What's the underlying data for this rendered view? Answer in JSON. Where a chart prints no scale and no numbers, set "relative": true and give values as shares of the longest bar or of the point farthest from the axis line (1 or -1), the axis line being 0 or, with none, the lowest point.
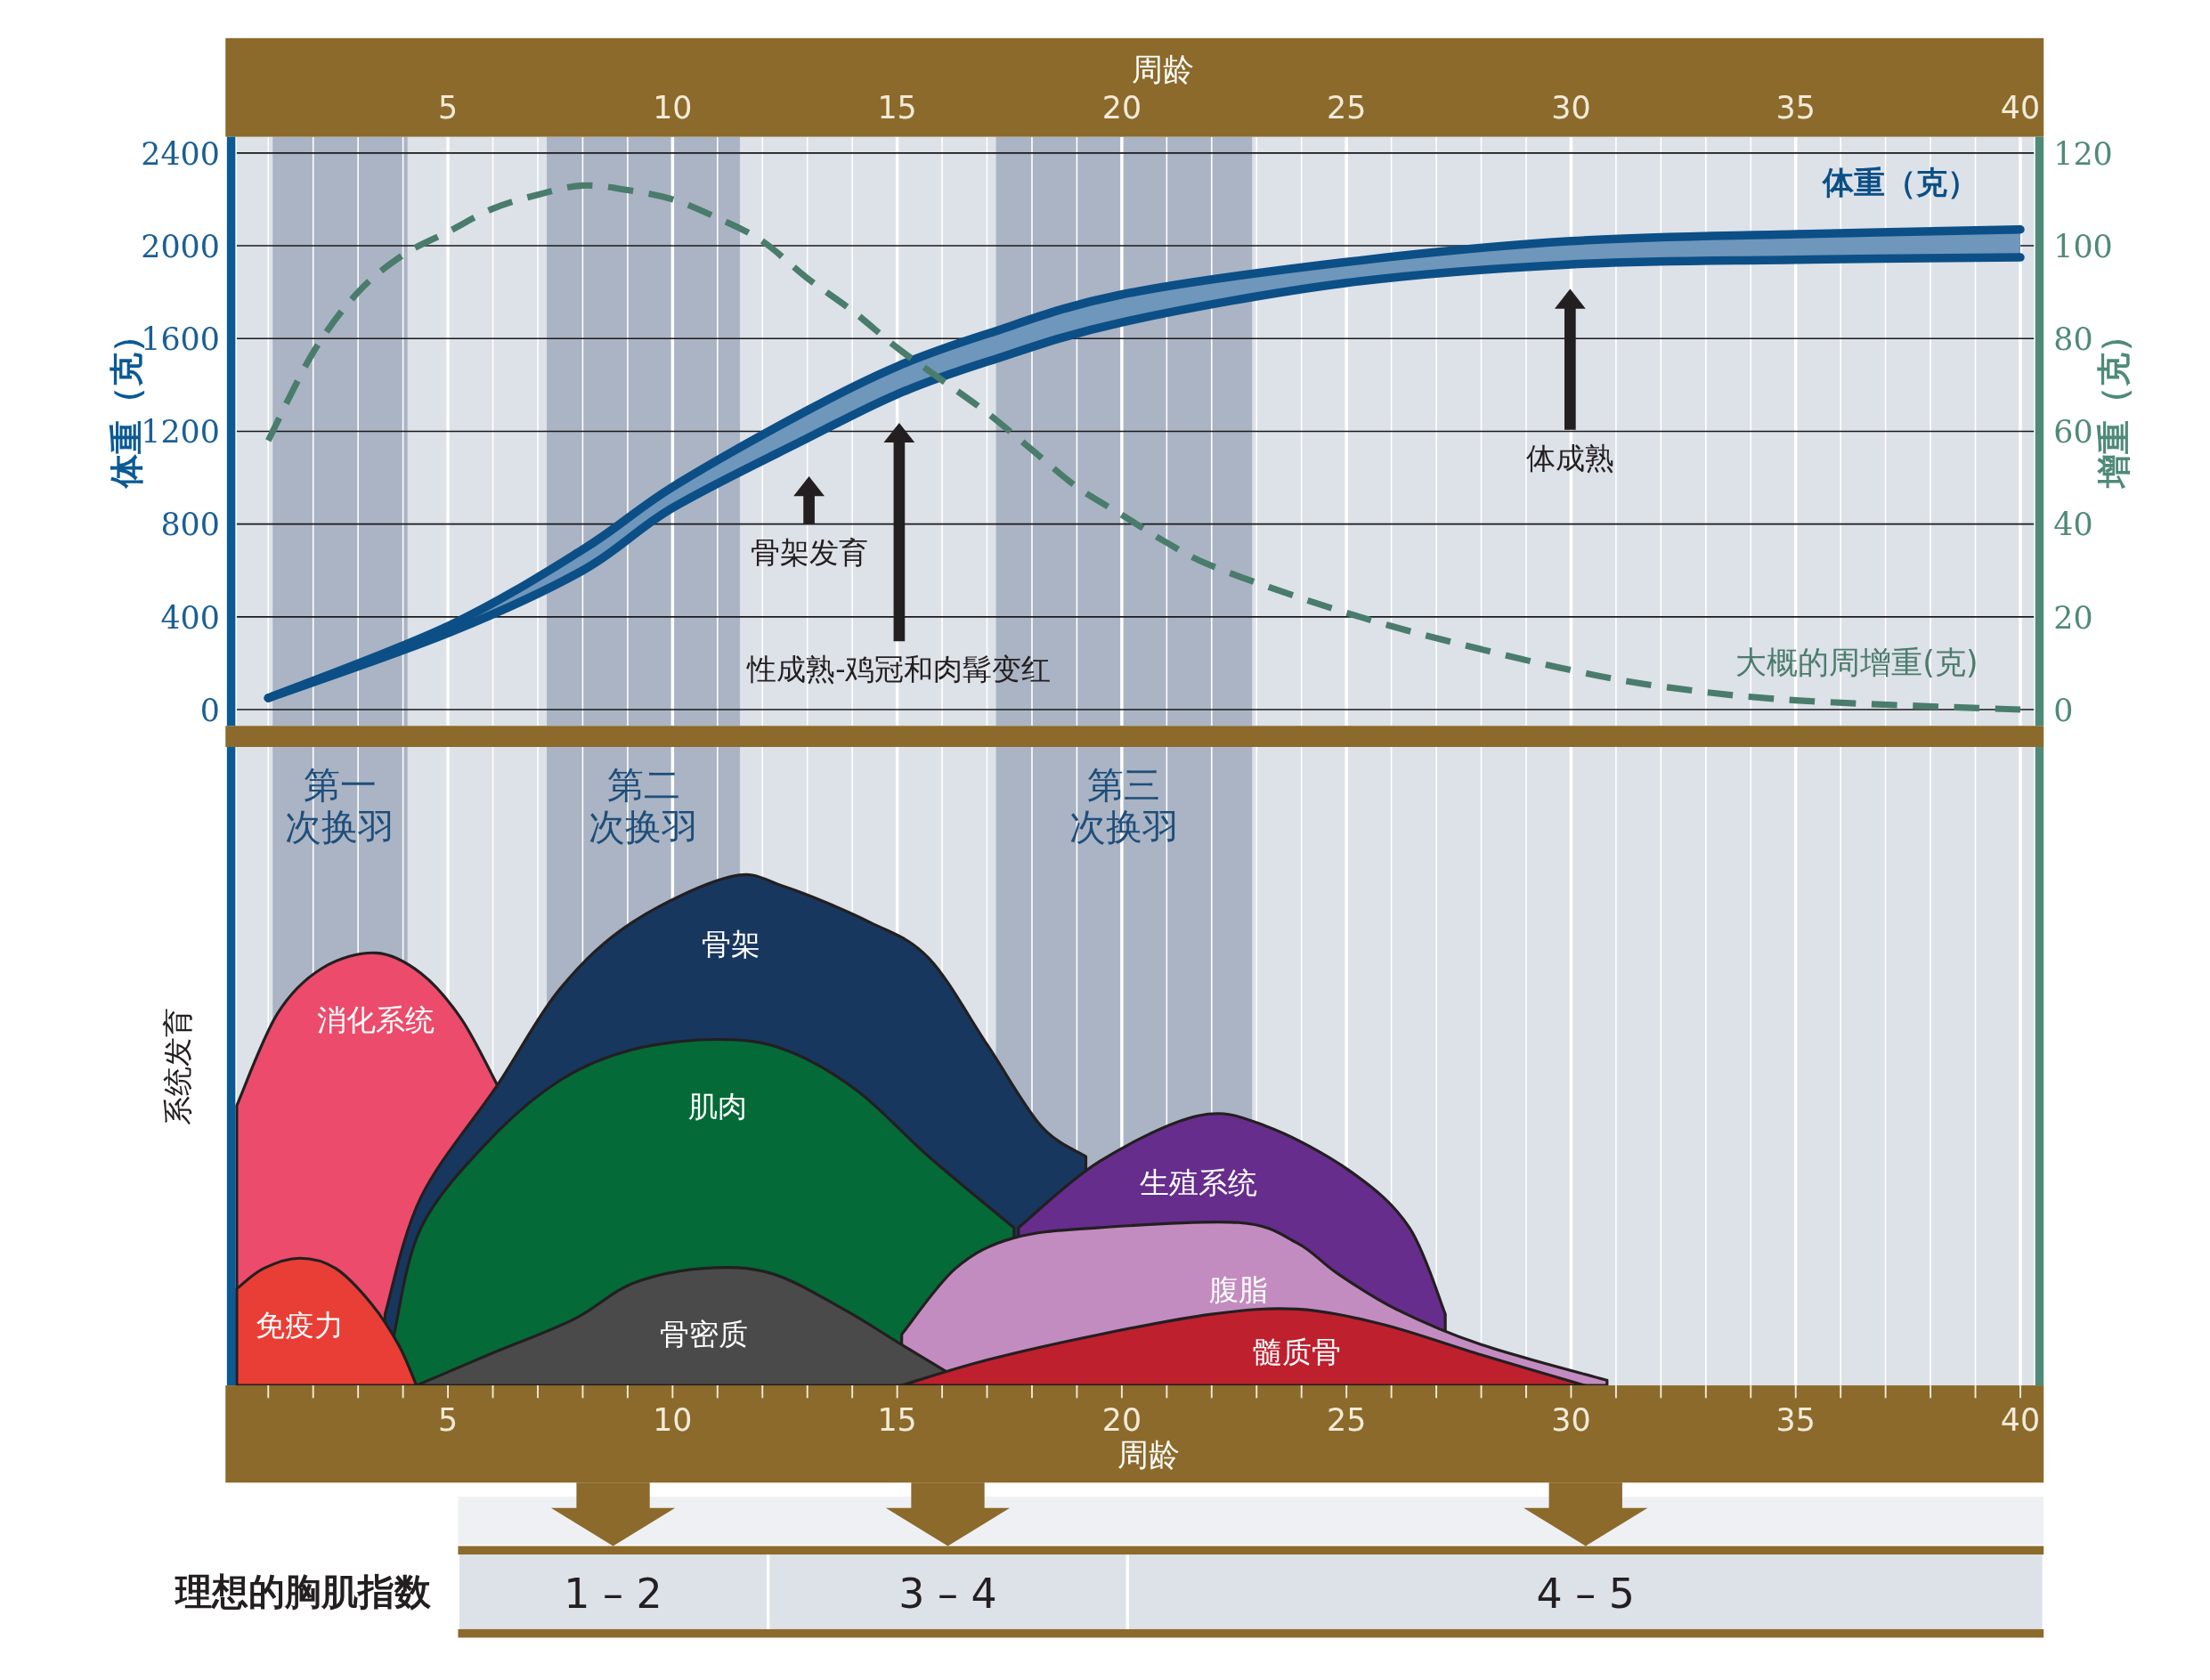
{
  "chart_data": [
    {
      "type": "line",
      "xlabel": "周龄",
      "ylabel": "体重（克）",
      "y2label": "增重（克）",
      "xlim": [
        0.3,
        40.3
      ],
      "xticks": [
        {
          "value": 1,
          "label": null
        },
        {
          "value": 2,
          "label": null
        },
        {
          "value": 3,
          "label": null
        },
        {
          "value": 4,
          "label": null
        },
        5,
        {
          "value": 6,
          "label": null
        },
        {
          "value": 7,
          "label": null
        },
        {
          "value": 8,
          "label": null
        },
        {
          "value": 9,
          "label": null
        },
        10,
        {
          "value": 11,
          "label": null
        },
        {
          "value": 12,
          "label": null
        },
        {
          "value": 13,
          "label": null
        },
        {
          "value": 14,
          "label": null
        },
        15,
        {
          "value": 16,
          "label": null
        },
        {
          "value": 17,
          "label": null
        },
        {
          "value": 18,
          "label": null
        },
        {
          "value": 19,
          "label": null
        },
        20,
        {
          "value": 21,
          "label": null
        },
        {
          "value": 22,
          "label": null
        },
        {
          "value": 23,
          "label": null
        },
        {
          "value": 24,
          "label": null
        },
        25,
        {
          "value": 26,
          "label": null
        },
        {
          "value": 27,
          "label": null
        },
        {
          "value": 28,
          "label": null
        },
        {
          "value": 29,
          "label": null
        },
        30,
        {
          "value": 31,
          "label": null
        },
        {
          "value": 32,
          "label": null
        },
        {
          "value": 33,
          "label": null
        },
        {
          "value": 34,
          "label": null
        },
        35,
        {
          "value": 36,
          "label": null
        },
        {
          "value": 37,
          "label": null
        },
        {
          "value": 38,
          "label": null
        },
        {
          "value": 39,
          "label": null
        },
        40
      ],
      "ylim": [
        -70,
        2470
      ],
      "yticks": [
        0,
        400,
        800,
        1200,
        1600,
        2000,
        2400
      ],
      "y2lim": [
        -3.5,
        123.5
      ],
      "y2ticks": [
        0,
        20,
        40,
        60,
        80,
        100,
        120
      ],
      "grid": true,
      "legend": false,
      "series": [
        {
          "name": "体重（克）",
          "type": "line",
          "color": "#0b4f86",
          "x": [
            1,
            5,
            8,
            10,
            13,
            15,
            17,
            20,
            25,
            30,
            35,
            40
          ],
          "values": [
            50,
            360,
            690,
            960,
            1290,
            1480,
            1620,
            1790,
            1930,
            2020,
            2050,
            2070
          ]
        },
        {
          "type": "line",
          "color": "#0b4f86",
          "x": [
            1,
            5,
            8,
            10,
            13,
            15,
            17,
            20,
            25,
            30,
            35,
            40
          ],
          "values": [
            50,
            330,
            600,
            870,
            1170,
            1360,
            1500,
            1670,
            1840,
            1920,
            1940,
            1950
          ]
        },
        {
          "name": "大概的周增重(克)",
          "type": "line",
          "axis": "y2",
          "line_style": "dashed",
          "color": "#4a7c6b",
          "x": [
            1,
            2,
            3,
            4,
            5,
            6,
            7,
            8,
            9,
            10,
            11,
            12,
            13,
            14,
            15,
            16,
            17,
            18,
            19,
            20,
            21,
            22,
            24,
            26,
            28,
            30,
            32,
            35,
            40
          ],
          "values": [
            58,
            77,
            90,
            98,
            103,
            108,
            111,
            113,
            112,
            110,
            106,
            101,
            93,
            86,
            78,
            71,
            64,
            56,
            48,
            42,
            36,
            31,
            24,
            18,
            13,
            8.5,
            5,
            2,
            0
          ]
        }
      ],
      "bands": [
        {
          "axis": "x",
          "from": 1.1,
          "to": 4.1,
          "color": "#aab4c4"
        },
        {
          "axis": "x",
          "from": 7.2,
          "to": 11.5,
          "color": "#aab4c4"
        },
        {
          "axis": "x",
          "from": 17.2,
          "to": 22.9,
          "color": "#aab4c4"
        }
      ],
      "annotations": [
        "骨架发育",
        "性成熟-鸡冠和肉髯变红",
        "体成熟"
      ]
    },
    {
      "type": "area",
      "relative": true,
      "xlabel": "周龄",
      "ylabel": "系统发育",
      "xlim": [
        0.3,
        40.3
      ],
      "xticks": [
        {
          "value": 1,
          "label": null
        },
        {
          "value": 2,
          "label": null
        },
        {
          "value": 3,
          "label": null
        },
        {
          "value": 4,
          "label": null
        },
        5,
        {
          "value": 6,
          "label": null
        },
        {
          "value": 7,
          "label": null
        },
        {
          "value": 8,
          "label": null
        },
        {
          "value": 9,
          "label": null
        },
        10,
        {
          "value": 11,
          "label": null
        },
        {
          "value": 12,
          "label": null
        },
        {
          "value": 13,
          "label": null
        },
        {
          "value": 14,
          "label": null
        },
        15,
        {
          "value": 16,
          "label": null
        },
        {
          "value": 17,
          "label": null
        },
        {
          "value": 18,
          "label": null
        },
        {
          "value": 19,
          "label": null
        },
        20,
        {
          "value": 21,
          "label": null
        },
        {
          "value": 22,
          "label": null
        },
        {
          "value": 23,
          "label": null
        },
        {
          "value": 24,
          "label": null
        },
        25,
        {
          "value": 26,
          "label": null
        },
        {
          "value": 27,
          "label": null
        },
        {
          "value": 28,
          "label": null
        },
        {
          "value": 29,
          "label": null
        },
        30,
        {
          "value": 31,
          "label": null
        },
        {
          "value": 32,
          "label": null
        },
        {
          "value": 33,
          "label": null
        },
        {
          "value": 34,
          "label": null
        },
        35,
        {
          "value": 36,
          "label": null
        },
        {
          "value": 37,
          "label": null
        },
        {
          "value": 38,
          "label": null
        },
        {
          "value": 39,
          "label": null
        },
        40
      ],
      "grid": "x",
      "legend": false,
      "series": [
        {
          "name": "消化系统",
          "color": "#ec4b6b",
          "x": [
            0.3,
            1.2,
            2.2,
            3.4,
            4.4,
            5.3,
            6.1
          ],
          "values": [
            0.55,
            0.73,
            0.82,
            0.85,
            0.81,
            0.72,
            0.59
          ]
        },
        {
          "name": "骨架",
          "color": "#17375f",
          "x": [
            3.6,
            4.4,
            6.1,
            7.5,
            9.1,
            11.3,
            12.5,
            14.4,
            15.7,
            17,
            18.2,
            19.2
          ],
          "values": [
            0.14,
            0.37,
            0.59,
            0.78,
            0.91,
            1,
            0.98,
            0.91,
            0.84,
            0.67,
            0.51,
            0.45
          ]
        },
        {
          "name": "肌肉",
          "color": "#046a38",
          "x": [
            3.8,
            4.4,
            5.9,
            7.5,
            9.1,
            11,
            12.5,
            14.1,
            15.7,
            17.6
          ],
          "values": [
            0.1,
            0.31,
            0.48,
            0.6,
            0.66,
            0.68,
            0.66,
            0.58,
            0.45,
            0.31
          ]
        },
        {
          "name": "生殖系统",
          "color": "#662d8c",
          "x": [
            17.7,
            19.5,
            21.7,
            23.2,
            25.1,
            26.4,
            27.2
          ],
          "values": [
            0.31,
            0.44,
            0.53,
            0.51,
            0.42,
            0.31,
            0.14
          ]
        },
        {
          "name": "腹脂",
          "color": "#c38cc0",
          "x": [
            15.1,
            16.3,
            17.6,
            19.5,
            22.6,
            23.9,
            24.8,
            26.1,
            28,
            30.8
          ],
          "values": [
            0.1,
            0.23,
            0.29,
            0.31,
            0.32,
            0.28,
            0.22,
            0.15,
            0.08,
            0.01
          ]
        },
        {
          "name": "免疫力",
          "color": "#e83e36",
          "x": [
            0.3,
            0.9,
            1.7,
            2.5,
            3.3,
            3.9,
            4.3
          ],
          "values": [
            0.19,
            0.23,
            0.25,
            0.23,
            0.16,
            0.08,
            0
          ]
        },
        {
          "name": "骨密质",
          "color": "#4a4a4a",
          "x": [
            4.3,
            5.9,
            7.8,
            9.1,
            10.7,
            12.2,
            13.8,
            15.1,
            16.6
          ],
          "values": [
            0,
            0.06,
            0.13,
            0.2,
            0.23,
            0.22,
            0.15,
            0.08,
            0
          ]
        },
        {
          "name": "髓质骨",
          "color": "#be202e",
          "x": [
            15.1,
            17,
            19.5,
            22,
            23.9,
            25.8,
            28,
            30.3
          ],
          "values": [
            0,
            0.05,
            0.1,
            0.14,
            0.15,
            0.12,
            0.06,
            0
          ]
        }
      ],
      "bands": [
        {
          "axis": "x",
          "from": 1.1,
          "to": 4.1,
          "color": "#aab4c4",
          "label": "第一次换羽"
        },
        {
          "axis": "x",
          "from": 7.2,
          "to": 11.5,
          "color": "#aab4c4",
          "label": "第二次换羽"
        },
        {
          "axis": "x",
          "from": 17.2,
          "to": 22.9,
          "color": "#aab4c4",
          "label": "第三次换羽"
        }
      ]
    },
    {
      "type": "other",
      "ylabel": "理想的胸肌指数",
      "categories": [
        "1 – 2",
        "3 – 4",
        "4 – 5"
      ]
    }
  ]
}
